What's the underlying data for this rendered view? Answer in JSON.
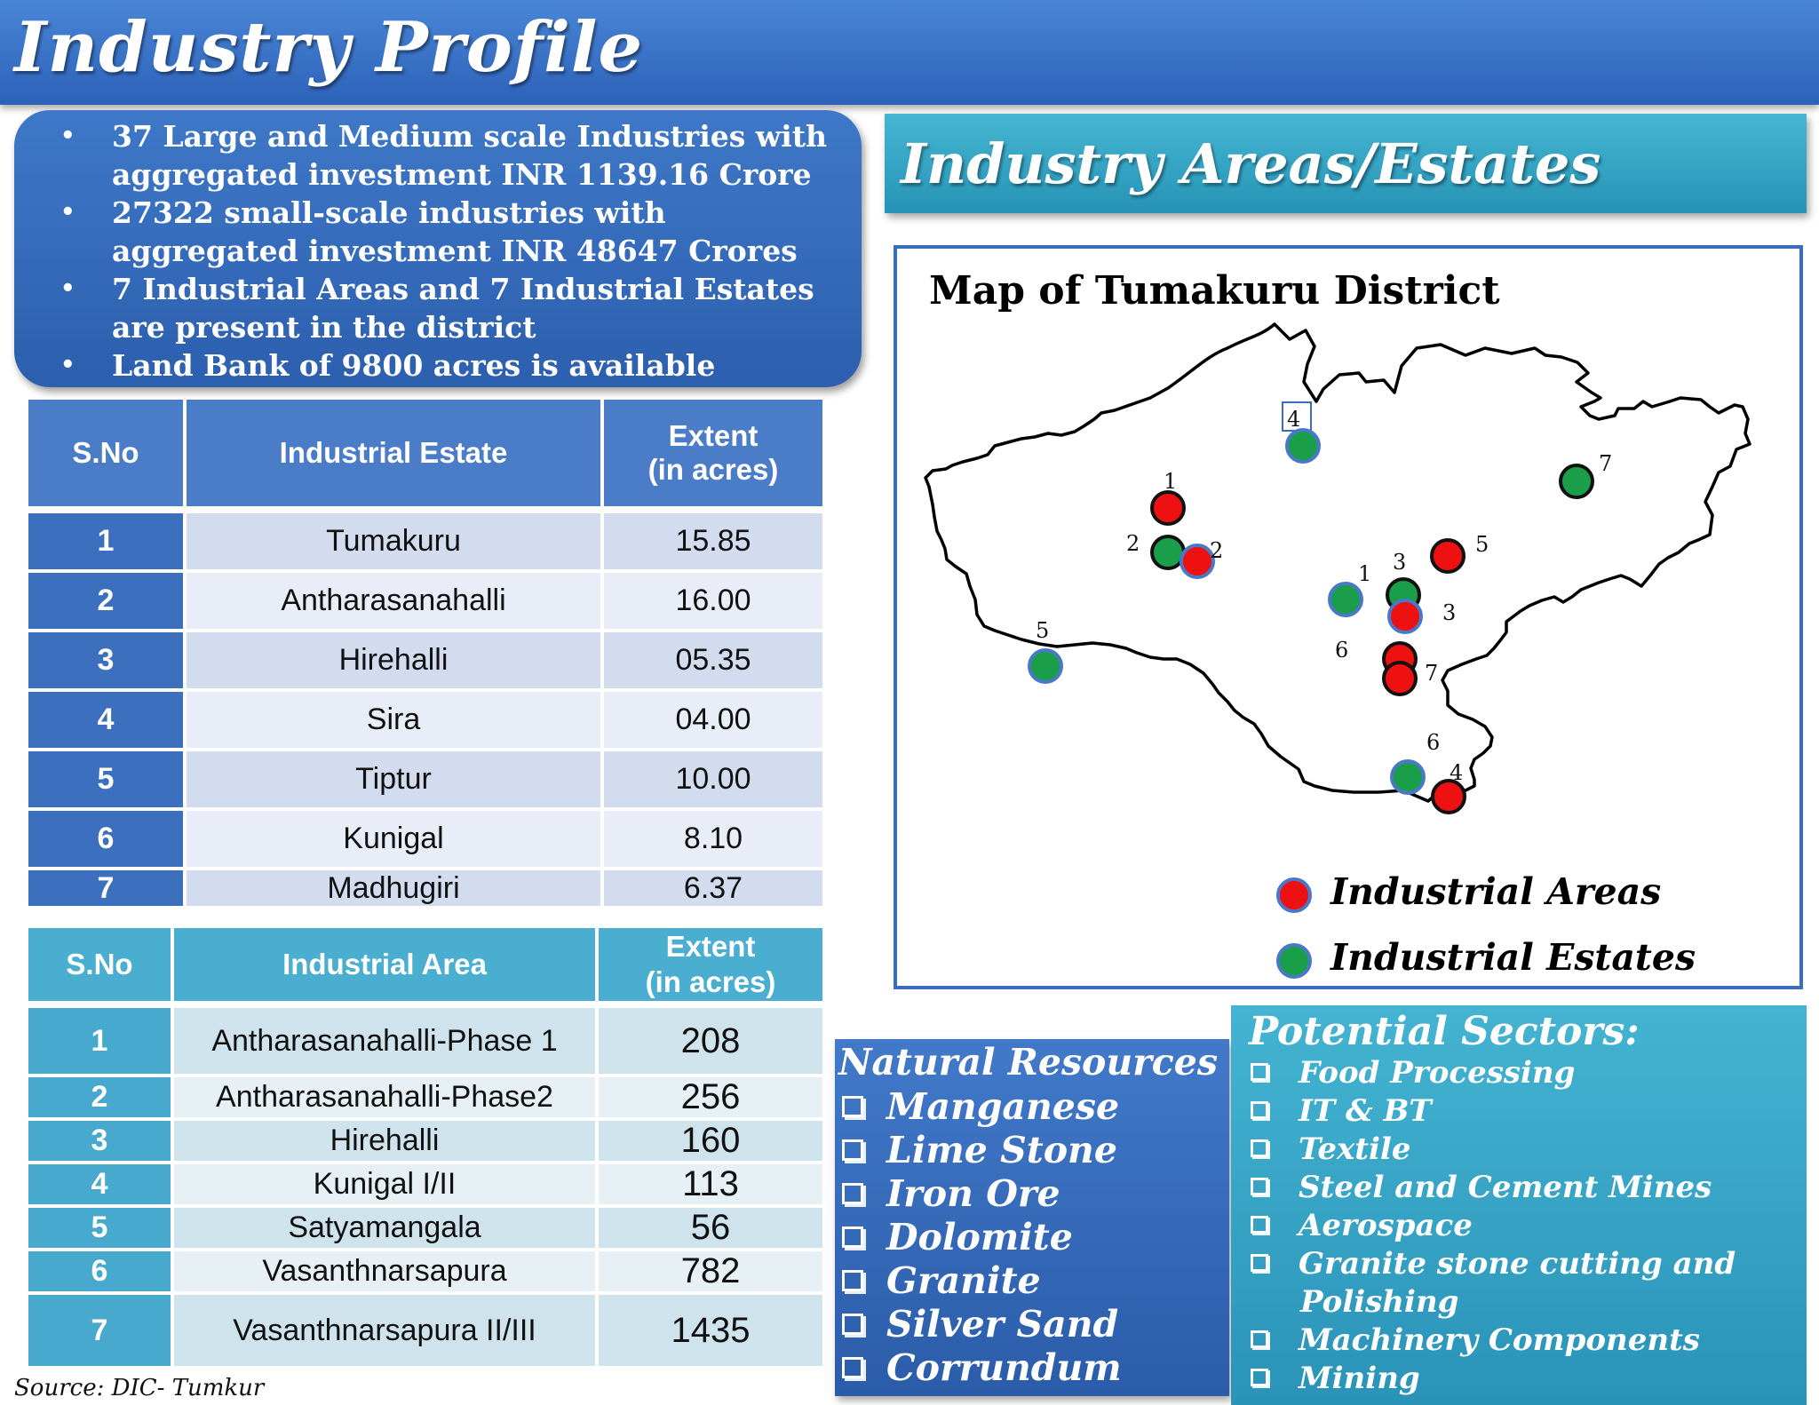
{
  "header": {
    "title": "Industry Profile"
  },
  "highlights": [
    "37 Large and Medium scale Industries with aggregated investment INR 1139.16 Crore",
    "27322 small-scale industries with aggregated investment INR 48647 Crores",
    "7 Industrial Areas and 7 Industrial Estates are present in the district",
    "Land Bank of 9800 acres is available"
  ],
  "estates_table": {
    "headers": [
      "S.No",
      "Industrial Estate",
      "Extent",
      "(in acres)"
    ],
    "rows": [
      [
        "1",
        "Tumakuru",
        "15.85"
      ],
      [
        "2",
        "Antharasanahalli",
        "16.00"
      ],
      [
        "3",
        "Hirehalli",
        "05.35"
      ],
      [
        "4",
        "Sira",
        "04.00"
      ],
      [
        "5",
        "Tiptur",
        "10.00"
      ],
      [
        "6",
        "Kunigal",
        "8.10"
      ],
      [
        "7",
        "Madhugiri",
        "6.37"
      ]
    ]
  },
  "areas_table": {
    "headers": [
      "S.No",
      "Industrial Area",
      "Extent",
      "(in acres)"
    ],
    "rows": [
      [
        "1",
        "Antharasanahalli-Phase 1",
        "208"
      ],
      [
        "2",
        "Antharasanahalli-Phase2",
        "256"
      ],
      [
        "3",
        "Hirehalli",
        "160"
      ],
      [
        "4",
        "Kunigal I/II",
        "113"
      ],
      [
        "5",
        "Satyamangala",
        "56"
      ],
      [
        "6",
        "Vasanthnarsapura",
        "782"
      ],
      [
        "7",
        "Vasanthnarsapura II/III",
        "1435"
      ]
    ]
  },
  "source": "Source: DIC- Tumkur",
  "areas_banner": {
    "title": "Industry Areas/Estates"
  },
  "map": {
    "title": "Map of Tumakuru District",
    "colors": {
      "industrial_area": "#ee1111",
      "industrial_estate": "#1a9e4a"
    },
    "marker_numbers": {
      "area_1": "1",
      "area_2": "2",
      "area_3": "3",
      "area_4": "4",
      "area_5": "5",
      "area_6": "6",
      "area_7": "7",
      "estate_1": "1",
      "estate_2": "2",
      "estate_3": "3",
      "estate_4": "4",
      "estate_5": "5",
      "estate_6": "6",
      "estate_7": "7"
    },
    "legend": {
      "areas": "Industrial Areas",
      "estates": "Industrial Estates"
    }
  },
  "resources": {
    "title": "Natural Resources",
    "items": [
      "Manganese",
      "Lime Stone",
      "Iron Ore",
      "Dolomite",
      "Granite",
      "Silver Sand",
      "Corrundum"
    ]
  },
  "sectors": {
    "title": "Potential Sectors:",
    "items": [
      "Food Processing",
      "IT & BT",
      "Textile",
      "Steel and Cement Mines",
      "Aerospace",
      "Granite stone cutting and",
      "Polishing",
      "Machinery Components",
      "Mining"
    ]
  }
}
